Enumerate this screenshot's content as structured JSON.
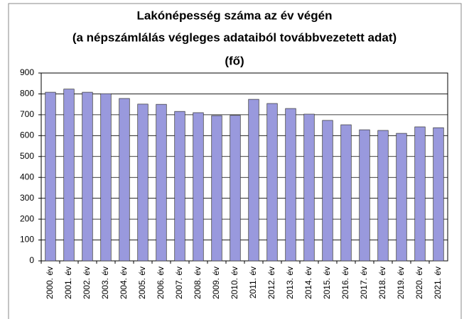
{
  "chart_data": {
    "type": "bar",
    "title": [
      "Lakónépesség száma az év végén",
      "(a népszámlálás végleges adataiból továbbvezetett adat)",
      "(fő)"
    ],
    "categories": [
      "2000. év",
      "2001. év",
      "2002. év",
      "2003. év",
      "2004. év",
      "2005. év",
      "2006. év",
      "2007. év",
      "2008. év",
      "2009. év",
      "2010. év",
      "2011. év",
      "2012. év",
      "2013. év",
      "2014. év",
      "2015. év",
      "2016. év",
      "2017. év",
      "2018. év",
      "2019. év",
      "2020. év",
      "2021. év"
    ],
    "values": [
      808,
      823,
      808,
      801,
      778,
      751,
      750,
      716,
      710,
      696,
      697,
      774,
      754,
      730,
      703,
      673,
      652,
      628,
      625,
      611,
      642,
      638
    ],
    "color": "#9999dd",
    "ylim": [
      0,
      900
    ],
    "yticks": [
      0,
      100,
      200,
      300,
      400,
      500,
      600,
      700,
      800,
      900
    ],
    "grid": true
  }
}
